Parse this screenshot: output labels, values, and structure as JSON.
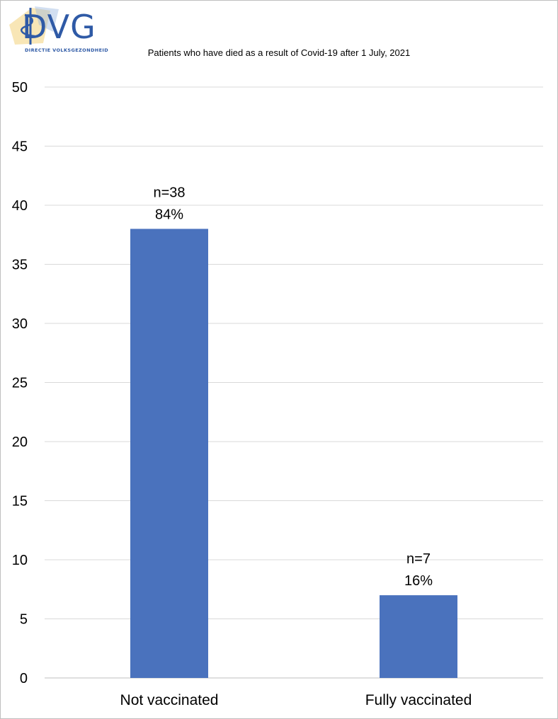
{
  "logo": {
    "name": "DVG",
    "subtitle": "DIRECTIE VOLKSGEZONDHEID",
    "colors": {
      "primary": "#2f5aa6",
      "accent": "#f2d27a"
    }
  },
  "chart_data": {
    "type": "bar",
    "title": "Patients who have died as a result of Covid-19 after 1 July, 2021",
    "xlabel": "",
    "ylabel": "",
    "categories": [
      "Not vaccinated",
      "Fully vaccinated"
    ],
    "values": [
      38,
      7
    ],
    "data_labels": [
      {
        "count": "n=38",
        "percent": "84%"
      },
      {
        "count": "n=7",
        "percent": "16%"
      }
    ],
    "ylim": [
      0,
      50
    ],
    "yticks": [
      0,
      5,
      10,
      15,
      20,
      25,
      30,
      35,
      40,
      45,
      50
    ],
    "grid": true,
    "legend": "none",
    "bar_color": "#4a72bd",
    "grid_color": "#d9d9d9"
  }
}
